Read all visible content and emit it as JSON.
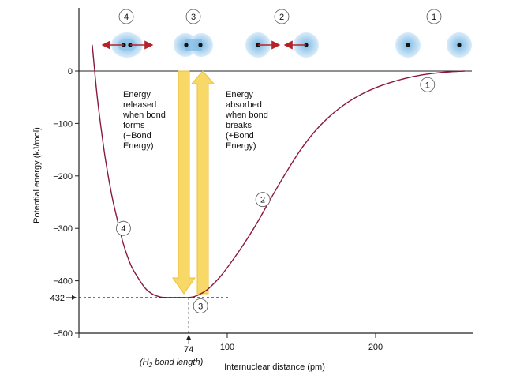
{
  "chart_data": {
    "type": "line",
    "title": "",
    "xlabel": "Internuclear distance (pm)",
    "ylabel": "Potential energy (kJ/mol)",
    "xlim": [
      0,
      260
    ],
    "ylim": [
      -500,
      50
    ],
    "x_ticks": [
      100,
      200
    ],
    "y_ticks": [
      0,
      -100,
      -200,
      -300,
      -400,
      -500
    ],
    "grid": false,
    "series": [
      {
        "name": "",
        "color": "#8b1a3a",
        "x": [
          9,
          12,
          15,
          18,
          22,
          26,
          30,
          35,
          40,
          45,
          50,
          55,
          60,
          65,
          70,
          74,
          78,
          82,
          86,
          90,
          95,
          100,
          110,
          120,
          130,
          140,
          150,
          160,
          170,
          180,
          190,
          200,
          210,
          220,
          230,
          240,
          250,
          260
        ],
        "y": [
          50,
          -40,
          -110,
          -170,
          -235,
          -285,
          -330,
          -370,
          -395,
          -415,
          -426,
          -431,
          -432,
          -432,
          -432,
          -432,
          -430,
          -425,
          -418,
          -408,
          -393,
          -375,
          -335,
          -290,
          -240,
          -192,
          -148,
          -112,
          -84,
          -62,
          -45,
          -32,
          -22,
          -14,
          -8,
          -4,
          -1.5,
          0
        ]
      }
    ],
    "bond_length_pm": 74,
    "bond_energy_kj": -432,
    "bond_length_label": "74",
    "bond_energy_label": "−432",
    "bond_length_caption": "(H",
    "bond_length_caption_sub": "2",
    "bond_length_caption_rest": " bond length)",
    "annotations": {
      "released": [
        "Energy",
        "released",
        "when bond",
        "forms",
        "(−Bond",
        "Energy)"
      ],
      "absorbed": [
        "Energy",
        "absorbed",
        "when bond",
        "breaks",
        "(+Bond",
        "Energy)"
      ]
    },
    "curve_markers": [
      {
        "label": "1",
        "x": 235,
        "y": -26
      },
      {
        "label": "2",
        "x": 124,
        "y": -245
      },
      {
        "label": "3",
        "x": 82,
        "y": -448
      },
      {
        "label": "4",
        "x": 30,
        "y": -300
      }
    ],
    "atom_stages": [
      {
        "label": "4",
        "description": "compressed atoms with repulsion arrows"
      },
      {
        "label": "3",
        "description": "bonded H2 molecule"
      },
      {
        "label": "2",
        "description": "atoms attracting"
      },
      {
        "label": "1",
        "description": "separated atoms"
      }
    ],
    "colors": {
      "curve": "#8b1a3a",
      "arrow_fill": "#f8d867",
      "arrow_stroke": "#e9c13a",
      "cloud": "#a9d3ef",
      "red_arrow": "#b4232a"
    }
  }
}
